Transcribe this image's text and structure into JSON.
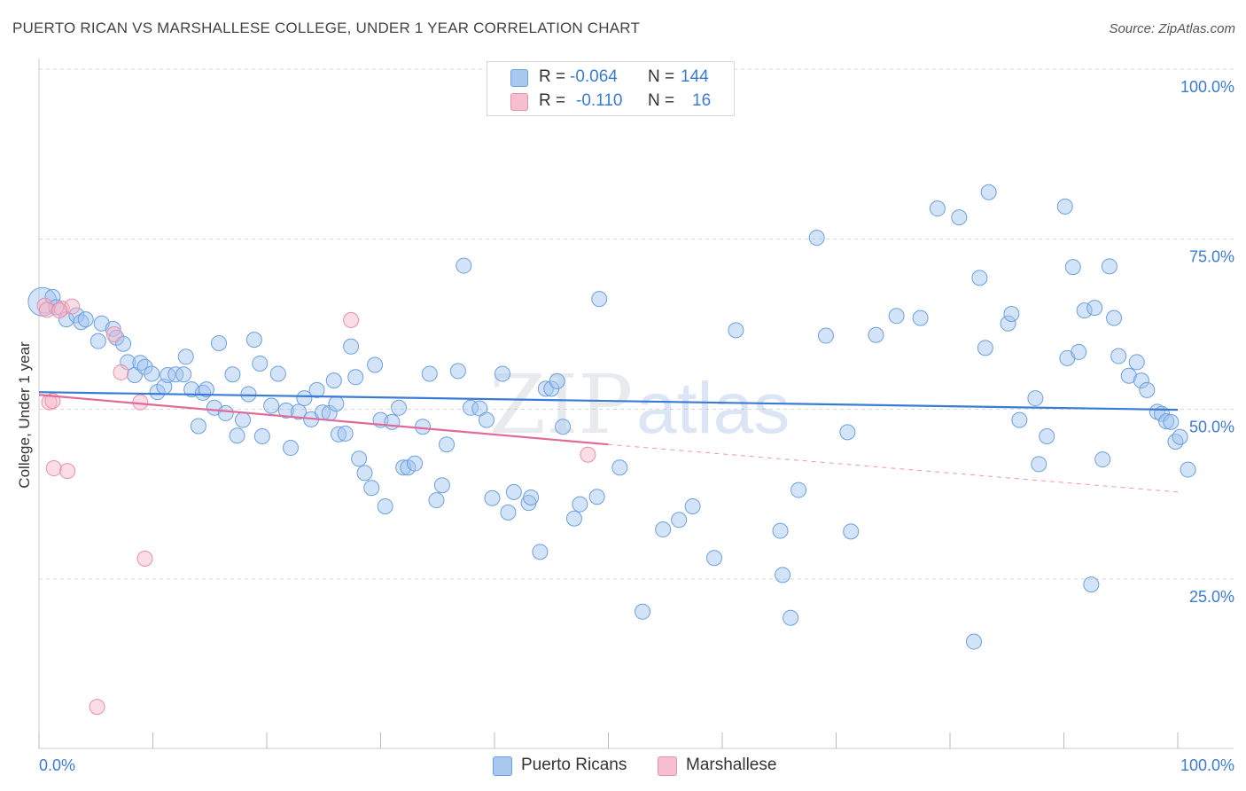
{
  "title": "PUERTO RICAN VS MARSHALLESE COLLEGE, UNDER 1 YEAR CORRELATION CHART",
  "source": "Source: ZipAtlas.com",
  "watermark": {
    "zip": "ZIP",
    "atlas": "atlas"
  },
  "legend": {
    "rows": [
      {
        "r_label": "R =",
        "r_value": "-0.064",
        "n_label": "N =",
        "n_value": "144",
        "color": "#a9c8f0",
        "border": "#6c9fe0"
      },
      {
        "r_label": "R =",
        "r_value": "-0.110",
        "n_label": "N =",
        "n_value": "16",
        "color": "#f6bfd0",
        "border": "#e88fab"
      }
    ]
  },
  "bottom_legend": {
    "items": [
      {
        "label": "Puerto Ricans",
        "color": "#a9c8f0",
        "border": "#6c9fe0"
      },
      {
        "label": "Marshallese",
        "color": "#f6bfd0",
        "border": "#e88fab"
      }
    ]
  },
  "colors": {
    "blue": "#3a7bd5",
    "blue_fill": "rgba(160,195,240,0.45)",
    "blue_stroke": "#6c9fe0",
    "pink": "#e06b9a",
    "pink_fill": "rgba(246,180,200,0.45)",
    "pink_stroke": "#e88fab",
    "grid": "#d6d6d6",
    "axis_text": "#3a7bd5"
  },
  "chart_data": {
    "type": "scatter",
    "title": "PUERTO RICAN VS MARSHALLESE COLLEGE, UNDER 1 YEAR CORRELATION CHART",
    "xlabel": "",
    "ylabel": "College, Under 1 year",
    "x_range": [
      0,
      100
    ],
    "y_range": [
      0,
      105
    ],
    "x_tick_labels": [
      {
        "value": 0,
        "label": "0.0%"
      },
      {
        "value": 100,
        "label": "100.0%"
      }
    ],
    "x_minor_ticks": [
      0,
      10,
      20,
      30,
      40,
      50,
      60,
      70,
      80,
      90,
      100
    ],
    "y_ticks": [
      {
        "value": 25,
        "label": "25.0%"
      },
      {
        "value": 50,
        "label": "50.0%"
      },
      {
        "value": 75,
        "label": "75.0%"
      },
      {
        "value": 100,
        "label": "100.0%"
      }
    ],
    "series": [
      {
        "name": "Puerto Ricans",
        "r": -0.064,
        "n": 144,
        "trend": {
          "x": [
            0,
            100
          ],
          "y": [
            52.5,
            49.9
          ]
        },
        "points": [
          [
            0.3,
            65.8,
            2
          ],
          [
            1.2,
            66.5,
            1
          ],
          [
            1.5,
            65,
            1
          ],
          [
            2.4,
            63.2,
            1
          ],
          [
            3.3,
            63.8,
            1
          ],
          [
            3.7,
            62.8,
            1
          ],
          [
            4.1,
            63.2,
            1
          ],
          [
            5.5,
            62.6,
            1
          ],
          [
            5.2,
            60,
            1
          ],
          [
            6.5,
            61.8,
            1
          ],
          [
            6.8,
            60.5,
            1
          ],
          [
            7.4,
            59.6,
            1
          ],
          [
            7.8,
            56.9,
            1
          ],
          [
            8.4,
            55,
            1
          ],
          [
            8.9,
            56.8,
            1
          ],
          [
            9.3,
            56.2,
            1
          ],
          [
            9.9,
            55.2,
            1
          ],
          [
            10.4,
            52.5,
            1
          ],
          [
            11.0,
            53.3,
            1
          ],
          [
            11.3,
            55.0,
            1
          ],
          [
            12.0,
            55.1,
            1
          ],
          [
            12.7,
            55.1,
            1
          ],
          [
            12.9,
            57.7,
            1
          ],
          [
            13.4,
            52.9,
            1
          ],
          [
            14.0,
            47.5,
            1
          ],
          [
            14.4,
            52.4,
            1
          ],
          [
            14.7,
            52.9,
            1
          ],
          [
            15.4,
            50.2,
            1
          ],
          [
            15.8,
            59.7,
            1
          ],
          [
            16.4,
            49.4,
            1
          ],
          [
            17.0,
            55.1,
            1
          ],
          [
            17.4,
            46.1,
            1
          ],
          [
            17.9,
            48.4,
            1
          ],
          [
            18.4,
            52.2,
            1
          ],
          [
            18.9,
            60.2,
            1
          ],
          [
            19.4,
            56.7,
            1
          ],
          [
            19.6,
            46.0,
            1
          ],
          [
            20.4,
            50.5,
            1
          ],
          [
            21.0,
            55.2,
            1
          ],
          [
            21.7,
            49.8,
            1
          ],
          [
            22.1,
            44.3,
            1
          ],
          [
            22.8,
            49.6,
            1
          ],
          [
            23.3,
            51.6,
            1
          ],
          [
            23.9,
            48.5,
            1
          ],
          [
            24.4,
            52.8,
            1
          ],
          [
            24.9,
            49.5,
            1
          ],
          [
            25.5,
            49.4,
            1
          ],
          [
            25.9,
            54.2,
            1
          ],
          [
            26.1,
            50.8,
            1
          ],
          [
            26.3,
            46.3,
            1
          ],
          [
            26.9,
            46.4,
            1
          ],
          [
            27.4,
            59.2,
            1
          ],
          [
            27.8,
            54.7,
            1
          ],
          [
            28.1,
            42.7,
            1
          ],
          [
            28.6,
            40.6,
            1
          ],
          [
            29.2,
            38.4,
            1
          ],
          [
            29.5,
            56.5,
            1
          ],
          [
            30.0,
            48.4,
            1
          ],
          [
            30.4,
            35.7,
            1
          ],
          [
            31.0,
            48.1,
            1
          ],
          [
            31.6,
            50.2,
            1
          ],
          [
            32.0,
            41.4,
            1
          ],
          [
            32.4,
            41.4,
            1
          ],
          [
            33.0,
            42.0,
            1
          ],
          [
            33.7,
            47.4,
            1
          ],
          [
            34.3,
            55.2,
            1
          ],
          [
            34.9,
            36.6,
            1
          ],
          [
            35.4,
            38.8,
            1
          ],
          [
            35.8,
            44.8,
            1
          ],
          [
            36.8,
            55.6,
            1
          ],
          [
            37.3,
            71.1,
            1
          ],
          [
            37.9,
            50.2,
            1
          ],
          [
            38.7,
            50.1,
            1
          ],
          [
            39.3,
            48.4,
            1
          ],
          [
            39.8,
            36.9,
            1
          ],
          [
            40.7,
            55.2,
            1
          ],
          [
            41.2,
            34.8,
            1
          ],
          [
            41.7,
            37.8,
            1
          ],
          [
            43.0,
            36.2,
            1
          ],
          [
            43.2,
            37.0,
            1
          ],
          [
            44.0,
            29.0,
            1
          ],
          [
            44.5,
            53.0,
            1
          ],
          [
            45.0,
            53.0,
            1
          ],
          [
            45.5,
            54.1,
            1
          ],
          [
            46.0,
            47.4,
            1
          ],
          [
            47.0,
            33.9,
            1
          ],
          [
            47.5,
            36.0,
            1
          ],
          [
            49.0,
            37.1,
            1
          ],
          [
            49.2,
            66.2,
            1
          ],
          [
            51.0,
            41.4,
            1
          ],
          [
            53.0,
            20.2,
            1
          ],
          [
            54.8,
            32.3,
            1
          ],
          [
            56.2,
            33.7,
            1
          ],
          [
            57.4,
            35.7,
            1
          ],
          [
            59.3,
            28.1,
            1
          ],
          [
            61.2,
            61.6,
            1
          ],
          [
            65.1,
            32.1,
            1
          ],
          [
            65.3,
            25.6,
            1
          ],
          [
            66.0,
            19.3,
            1
          ],
          [
            66.7,
            38.1,
            1
          ],
          [
            68.3,
            75.2,
            1
          ],
          [
            69.1,
            60.8,
            1
          ],
          [
            71.0,
            46.6,
            1
          ],
          [
            71.3,
            32.0,
            1
          ],
          [
            73.5,
            60.9,
            1
          ],
          [
            75.3,
            63.7,
            1
          ],
          [
            77.4,
            63.4,
            1
          ],
          [
            78.9,
            79.5,
            1
          ],
          [
            80.8,
            78.2,
            1
          ],
          [
            82.1,
            15.8,
            1
          ],
          [
            82.6,
            69.3,
            1
          ],
          [
            83.1,
            59.0,
            1
          ],
          [
            83.4,
            81.9,
            1
          ],
          [
            85.1,
            62.6,
            1
          ],
          [
            85.4,
            64.0,
            1
          ],
          [
            86.1,
            48.4,
            1
          ],
          [
            87.5,
            51.6,
            1
          ],
          [
            87.8,
            41.9,
            1
          ],
          [
            88.5,
            46.0,
            1
          ],
          [
            90.1,
            79.8,
            1
          ],
          [
            90.3,
            57.5,
            1
          ],
          [
            90.8,
            70.9,
            1
          ],
          [
            91.3,
            58.4,
            1
          ],
          [
            91.8,
            64.5,
            1
          ],
          [
            92.4,
            24.2,
            1
          ],
          [
            92.7,
            64.9,
            1
          ],
          [
            93.4,
            42.6,
            1
          ],
          [
            94.0,
            71.0,
            1
          ],
          [
            94.4,
            63.4,
            1
          ],
          [
            94.8,
            57.8,
            1
          ],
          [
            95.7,
            54.9,
            1
          ],
          [
            96.4,
            56.9,
            1
          ],
          [
            96.8,
            54.2,
            1
          ],
          [
            97.3,
            52.8,
            1
          ],
          [
            98.2,
            49.6,
            1
          ],
          [
            98.6,
            49.3,
            1
          ],
          [
            99.0,
            48.2,
            1
          ],
          [
            99.4,
            48.1,
            1
          ],
          [
            99.8,
            45.2,
            1
          ],
          [
            100.2,
            45.9,
            1
          ],
          [
            100.9,
            41.1,
            1
          ]
        ]
      },
      {
        "name": "Marshallese",
        "r": -0.11,
        "n": 16,
        "trend": {
          "x": [
            0,
            50
          ],
          "y": [
            52.1,
            44.8
          ]
        },
        "trend_extension": {
          "x": [
            50,
            100
          ],
          "y": [
            44.8,
            37.8
          ]
        },
        "points": [
          [
            0.5,
            65.2,
            1
          ],
          [
            0.7,
            64.6,
            1
          ],
          [
            0.9,
            51.0,
            1
          ],
          [
            1.2,
            51.2,
            1
          ],
          [
            1.3,
            41.3,
            1
          ],
          [
            2.0,
            64.8,
            1
          ],
          [
            2.5,
            40.9,
            1
          ],
          [
            2.9,
            65.1,
            1
          ],
          [
            5.1,
            6.2,
            1
          ],
          [
            6.6,
            61.0,
            1
          ],
          [
            7.2,
            55.4,
            1
          ],
          [
            8.9,
            51.0,
            1
          ],
          [
            9.3,
            28.0,
            1
          ],
          [
            27.4,
            63.1,
            1
          ],
          [
            48.2,
            43.3,
            1
          ],
          [
            1.8,
            64.5,
            1
          ]
        ]
      }
    ]
  }
}
